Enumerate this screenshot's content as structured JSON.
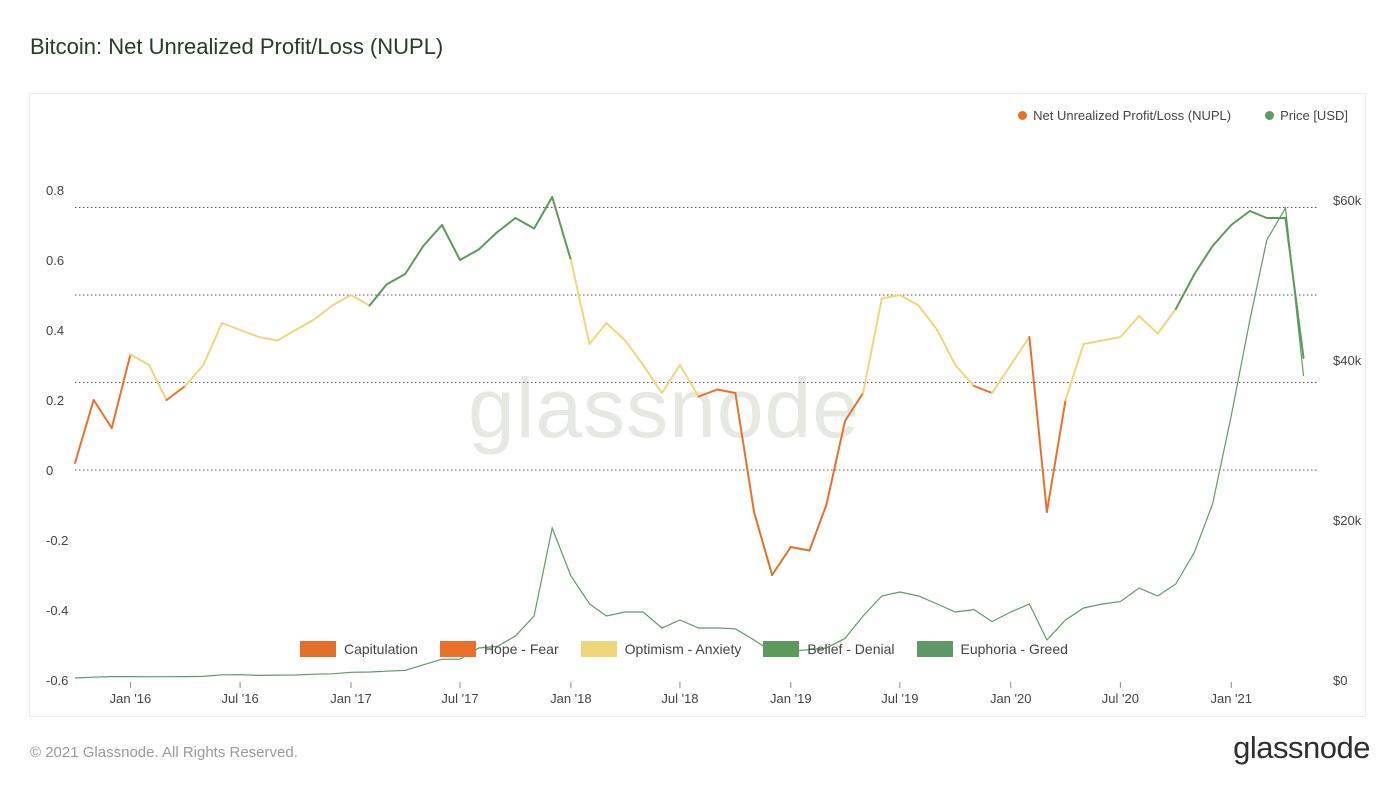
{
  "title": "Bitcoin: Net Unrealized Profit/Loss (NUPL)",
  "footer": "© 2021 Glassnode. All Rights Reserved.",
  "brand": "glassnode",
  "watermark": "glassnode",
  "legend_top": [
    {
      "label": "Net Unrealized Profit/Loss (NUPL)",
      "color": "#e8702a"
    },
    {
      "label": "Price [USD]",
      "color": "#5f9a66"
    }
  ],
  "legend_bottom": [
    {
      "label": "Capitulation",
      "color": "#e36f2c"
    },
    {
      "label": "Hope - Fear",
      "color": "#e8702a"
    },
    {
      "label": "Optimism - Anxiety",
      "color": "#f0d67a"
    },
    {
      "label": "Belief - Denial",
      "color": "#5c9a5c"
    },
    {
      "label": "Euphoria - Greed",
      "color": "#5f9a66"
    }
  ],
  "chart_data": {
    "type": "line",
    "x_ticks": [
      "Jan '16",
      "Jul '16",
      "Jan '17",
      "Jul '17",
      "Jan '18",
      "Jul '18",
      "Jan '19",
      "Jul '19",
      "Jan '20",
      "Jul '20",
      "Jan '21"
    ],
    "y_left": {
      "ticks": [
        "0.8",
        "0.6",
        "0.4",
        "0.2",
        "0",
        "-0.2",
        "-0.4",
        "-0.6"
      ],
      "range": [
        -0.6,
        0.8
      ]
    },
    "y_right": {
      "ticks": [
        "$60k",
        "$40k",
        "$20k",
        "$0"
      ],
      "range": [
        0,
        60000
      ]
    },
    "reference_lines": [
      0.75,
      0.5,
      0.25,
      0
    ],
    "grid": false,
    "legend_placement": "top-right",
    "series": [
      {
        "name": "Net Unrealized Profit/Loss (NUPL)",
        "axis": "left",
        "x": [
          "2015-10",
          "2015-11",
          "2015-12",
          "2016-01",
          "2016-02",
          "2016-03",
          "2016-04",
          "2016-05",
          "2016-06",
          "2016-07",
          "2016-08",
          "2016-09",
          "2016-10",
          "2016-11",
          "2016-12",
          "2017-01",
          "2017-02",
          "2017-03",
          "2017-04",
          "2017-05",
          "2017-06",
          "2017-07",
          "2017-08",
          "2017-09",
          "2017-10",
          "2017-11",
          "2017-12",
          "2018-01",
          "2018-02",
          "2018-03",
          "2018-04",
          "2018-05",
          "2018-06",
          "2018-07",
          "2018-08",
          "2018-09",
          "2018-10",
          "2018-11",
          "2018-12",
          "2019-01",
          "2019-02",
          "2019-03",
          "2019-04",
          "2019-05",
          "2019-06",
          "2019-07",
          "2019-08",
          "2019-09",
          "2019-10",
          "2019-11",
          "2019-12",
          "2020-01",
          "2020-02",
          "2020-03",
          "2020-04",
          "2020-05",
          "2020-06",
          "2020-07",
          "2020-08",
          "2020-09",
          "2020-10",
          "2020-11",
          "2020-12",
          "2021-01",
          "2021-02",
          "2021-03",
          "2021-04",
          "2021-05"
        ],
        "y": [
          0.02,
          0.2,
          0.12,
          0.33,
          0.3,
          0.2,
          0.24,
          0.3,
          0.42,
          0.4,
          0.38,
          0.37,
          0.4,
          0.43,
          0.47,
          0.5,
          0.47,
          0.53,
          0.56,
          0.64,
          0.7,
          0.6,
          0.63,
          0.68,
          0.72,
          0.69,
          0.78,
          0.6,
          0.36,
          0.42,
          0.37,
          0.3,
          0.22,
          0.3,
          0.21,
          0.23,
          0.22,
          -0.12,
          -0.3,
          -0.22,
          -0.23,
          -0.1,
          0.14,
          0.22,
          0.49,
          0.5,
          0.47,
          0.4,
          0.3,
          0.24,
          0.22,
          0.3,
          0.38,
          -0.12,
          0.2,
          0.36,
          0.37,
          0.38,
          0.44,
          0.39,
          0.46,
          0.56,
          0.64,
          0.7,
          0.74,
          0.72,
          0.72,
          0.32
        ]
      },
      {
        "name": "Price [USD]",
        "axis": "right",
        "x": [
          "2015-10",
          "2015-11",
          "2015-12",
          "2016-01",
          "2016-02",
          "2016-03",
          "2016-04",
          "2016-05",
          "2016-06",
          "2016-07",
          "2016-08",
          "2016-09",
          "2016-10",
          "2016-11",
          "2016-12",
          "2017-01",
          "2017-02",
          "2017-03",
          "2017-04",
          "2017-05",
          "2017-06",
          "2017-07",
          "2017-08",
          "2017-09",
          "2017-10",
          "2017-11",
          "2017-12",
          "2018-01",
          "2018-02",
          "2018-03",
          "2018-04",
          "2018-05",
          "2018-06",
          "2018-07",
          "2018-08",
          "2018-09",
          "2018-10",
          "2018-11",
          "2018-12",
          "2019-01",
          "2019-02",
          "2019-03",
          "2019-04",
          "2019-05",
          "2019-06",
          "2019-07",
          "2019-08",
          "2019-09",
          "2019-10",
          "2019-11",
          "2019-12",
          "2020-01",
          "2020-02",
          "2020-03",
          "2020-04",
          "2020-05",
          "2020-06",
          "2020-07",
          "2020-08",
          "2020-09",
          "2020-10",
          "2020-11",
          "2020-12",
          "2021-01",
          "2021-02",
          "2021-03",
          "2021-04",
          "2021-05"
        ],
        "y": [
          250,
          350,
          430,
          420,
          400,
          410,
          430,
          450,
          650,
          660,
          580,
          610,
          620,
          720,
          780,
          960,
          1000,
          1100,
          1200,
          1900,
          2600,
          2600,
          4000,
          4200,
          5500,
          8000,
          19000,
          13000,
          9500,
          8000,
          8500,
          8500,
          6500,
          7500,
          6500,
          6500,
          6400,
          5000,
          3500,
          3600,
          3800,
          4000,
          5200,
          8000,
          10500,
          11000,
          10500,
          9500,
          8500,
          8800,
          7300,
          8500,
          9500,
          5000,
          7500,
          9000,
          9500,
          9800,
          11500,
          10500,
          12000,
          16000,
          22000,
          33000,
          45000,
          55000,
          59000,
          38000
        ]
      }
    ]
  }
}
